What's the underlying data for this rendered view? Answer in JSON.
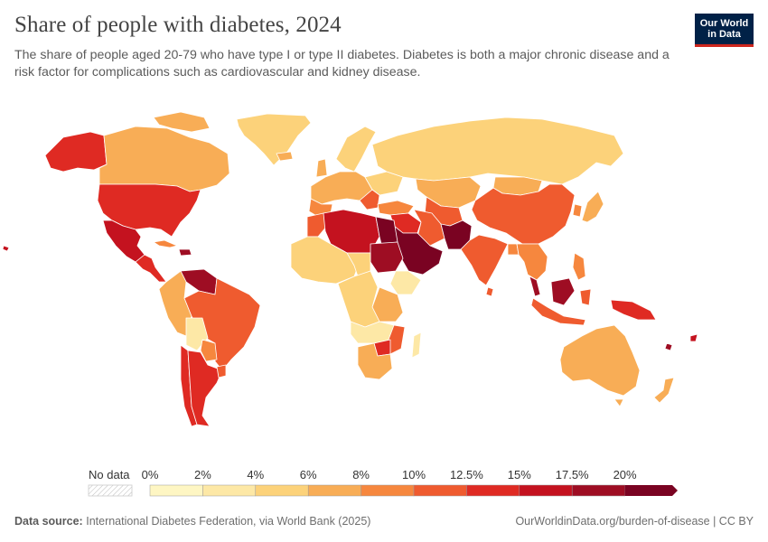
{
  "title": "Share of people with diabetes, 2024",
  "subtitle": "The share of people aged 20-79 who have type I or type II diabetes. Diabetes is both a major chronic disease and a risk factor for complications such as cardiovascular and kidney disease.",
  "logo": {
    "line1": "Our World",
    "line2": "in Data"
  },
  "legend": {
    "no_data_label": "No data",
    "tick_labels": [
      "0%",
      "2%",
      "4%",
      "6%",
      "8%",
      "10%",
      "12.5%",
      "15%",
      "17.5%",
      "20%"
    ],
    "colors": [
      "#fef6c3",
      "#fde8a6",
      "#fcd27a",
      "#f8ad56",
      "#f6873e",
      "#ef5b2f",
      "#df2a23",
      "#c4121f",
      "#9e0d23",
      "#7a0322"
    ]
  },
  "footer": {
    "source_label": "Data source:",
    "source_text": "International Diabetes Federation, via World Bank (2025)",
    "right_text": "OurWorldinData.org/burden-of-disease | CC BY"
  },
  "colors": {
    "logo_bg": "#002147",
    "logo_accent": "#ce261e",
    "ocean": "#ffffff",
    "borders": "#ffffff"
  }
}
